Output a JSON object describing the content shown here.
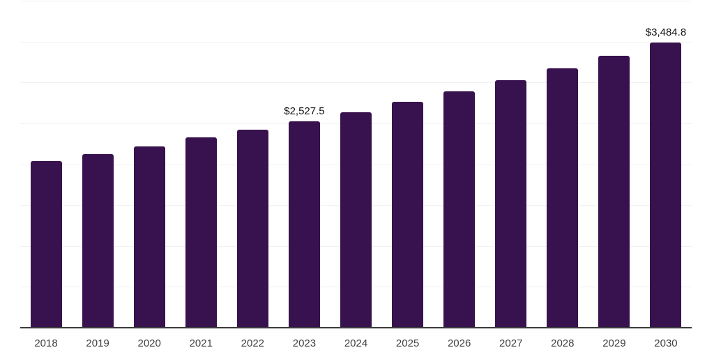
{
  "chart_data": {
    "type": "bar",
    "title": "",
    "xlabel": "",
    "ylabel": "",
    "categories": [
      "2018",
      "2019",
      "2020",
      "2021",
      "2022",
      "2023",
      "2024",
      "2025",
      "2026",
      "2027",
      "2028",
      "2029",
      "2030"
    ],
    "values": [
      2042,
      2127,
      2220,
      2328,
      2426,
      2527.5,
      2639,
      2765,
      2893,
      3029,
      3177,
      3330,
      3484.8
    ],
    "value_labels": [
      {
        "category": "2023",
        "text": "$2,527.5"
      },
      {
        "category": "2030",
        "text": "$3,484.8"
      }
    ],
    "ylim": [
      0,
      4000
    ],
    "gridline_step": 500,
    "grid": "horizontal",
    "legend": "none",
    "colors": {
      "bar": "#38124E",
      "gridline": "#f1f1f1",
      "axis_line": "#3b3b3b",
      "tick_label": "#3f3f3f",
      "value_label": "#121212",
      "background": "#ffffff"
    }
  }
}
